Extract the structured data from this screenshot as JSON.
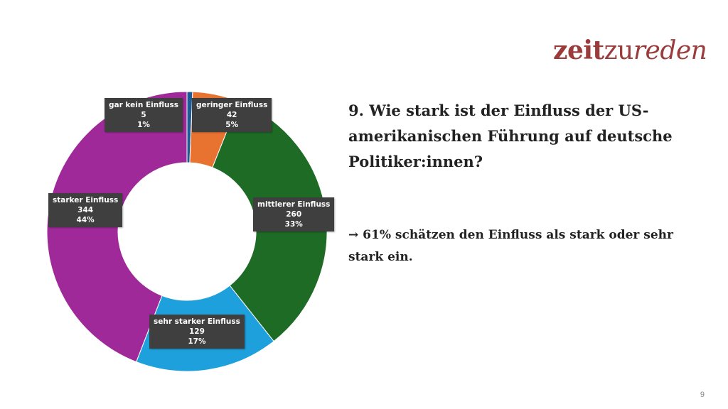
{
  "logo": {
    "part1": "zeit",
    "part2": "zu",
    "part3": "reden"
  },
  "title": "9. Wie stark ist der Einfluss der US-amerikanischen Führung auf deutsche Politiker:innen?",
  "note": "→ 61% schätzen den Einfluss als stark oder sehr stark ein.",
  "page_number": "9",
  "chart_data": {
    "type": "pie",
    "variant": "donut",
    "categories": [
      "gar kein Einfluss",
      "geringer Einfluss",
      "mittlerer Einfluss",
      "sehr starker Einfluss",
      "starker Einfluss"
    ],
    "values": [
      5,
      42,
      260,
      129,
      344
    ],
    "percent_labels": [
      "1%",
      "5%",
      "33%",
      "17%",
      "44%"
    ],
    "colors": [
      "#1f5b94",
      "#e87330",
      "#1e6b26",
      "#1ea0dc",
      "#a0299a"
    ]
  }
}
